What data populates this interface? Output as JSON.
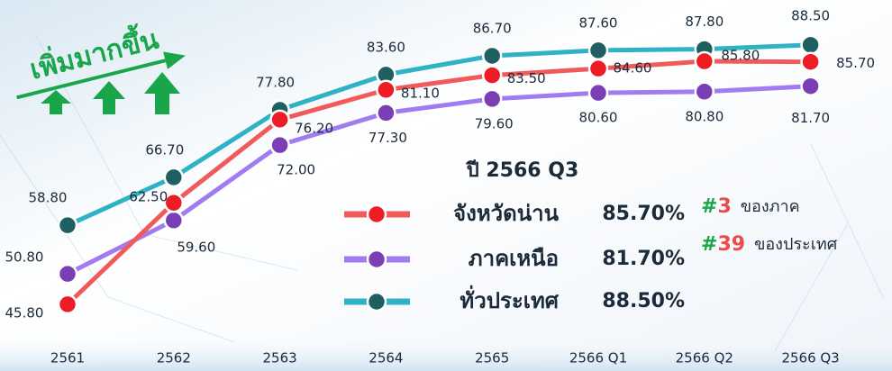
{
  "chart_data": {
    "type": "line",
    "annotation": "เพิ่มมากขึ้น",
    "legend_title": "ปี 2566 Q3",
    "categories": [
      "2561",
      "2562",
      "2563",
      "2564",
      "2565",
      "2566 Q1",
      "2566 Q2",
      "2566 Q3"
    ],
    "ylim": [
      40,
      95
    ],
    "series": [
      {
        "name": "ทั่วประเทศ",
        "color": "#2fb3c4",
        "marker": "#1f5f62",
        "values": [
          58.8,
          66.7,
          77.8,
          83.6,
          86.7,
          87.6,
          87.8,
          88.5
        ],
        "value_labels": [
          "58.80",
          "66.70",
          "77.80",
          "83.60",
          "86.70",
          "87.60",
          "87.80",
          "88.50"
        ],
        "legend_value": "88.50%"
      },
      {
        "name": "ภาคเหนือ",
        "color": "#a07cf0",
        "marker": "#7b3fb5",
        "values": [
          50.8,
          59.6,
          72.0,
          77.3,
          79.6,
          80.6,
          80.8,
          81.7
        ],
        "value_labels": [
          "50.80",
          "59.60",
          "72.00",
          "77.30",
          "79.60",
          "80.60",
          "80.80",
          "81.70"
        ],
        "legend_value": "81.70%"
      },
      {
        "name": "จังหวัดน่าน",
        "color": "#f05a5a",
        "marker": "#ee1c24",
        "values": [
          45.8,
          62.5,
          76.2,
          81.1,
          83.5,
          84.6,
          85.8,
          85.7
        ],
        "value_labels": [
          "45.80",
          "62.50",
          "76.20",
          "81.10",
          "83.50",
          "84.60",
          "85.80",
          "85.70"
        ],
        "legend_value": "85.70%"
      }
    ],
    "ranks": [
      {
        "prefix": "#",
        "rank": "3",
        "text": "ของภาค"
      },
      {
        "prefix": "#",
        "rank": "39",
        "text": "ของประเทศ"
      }
    ]
  }
}
